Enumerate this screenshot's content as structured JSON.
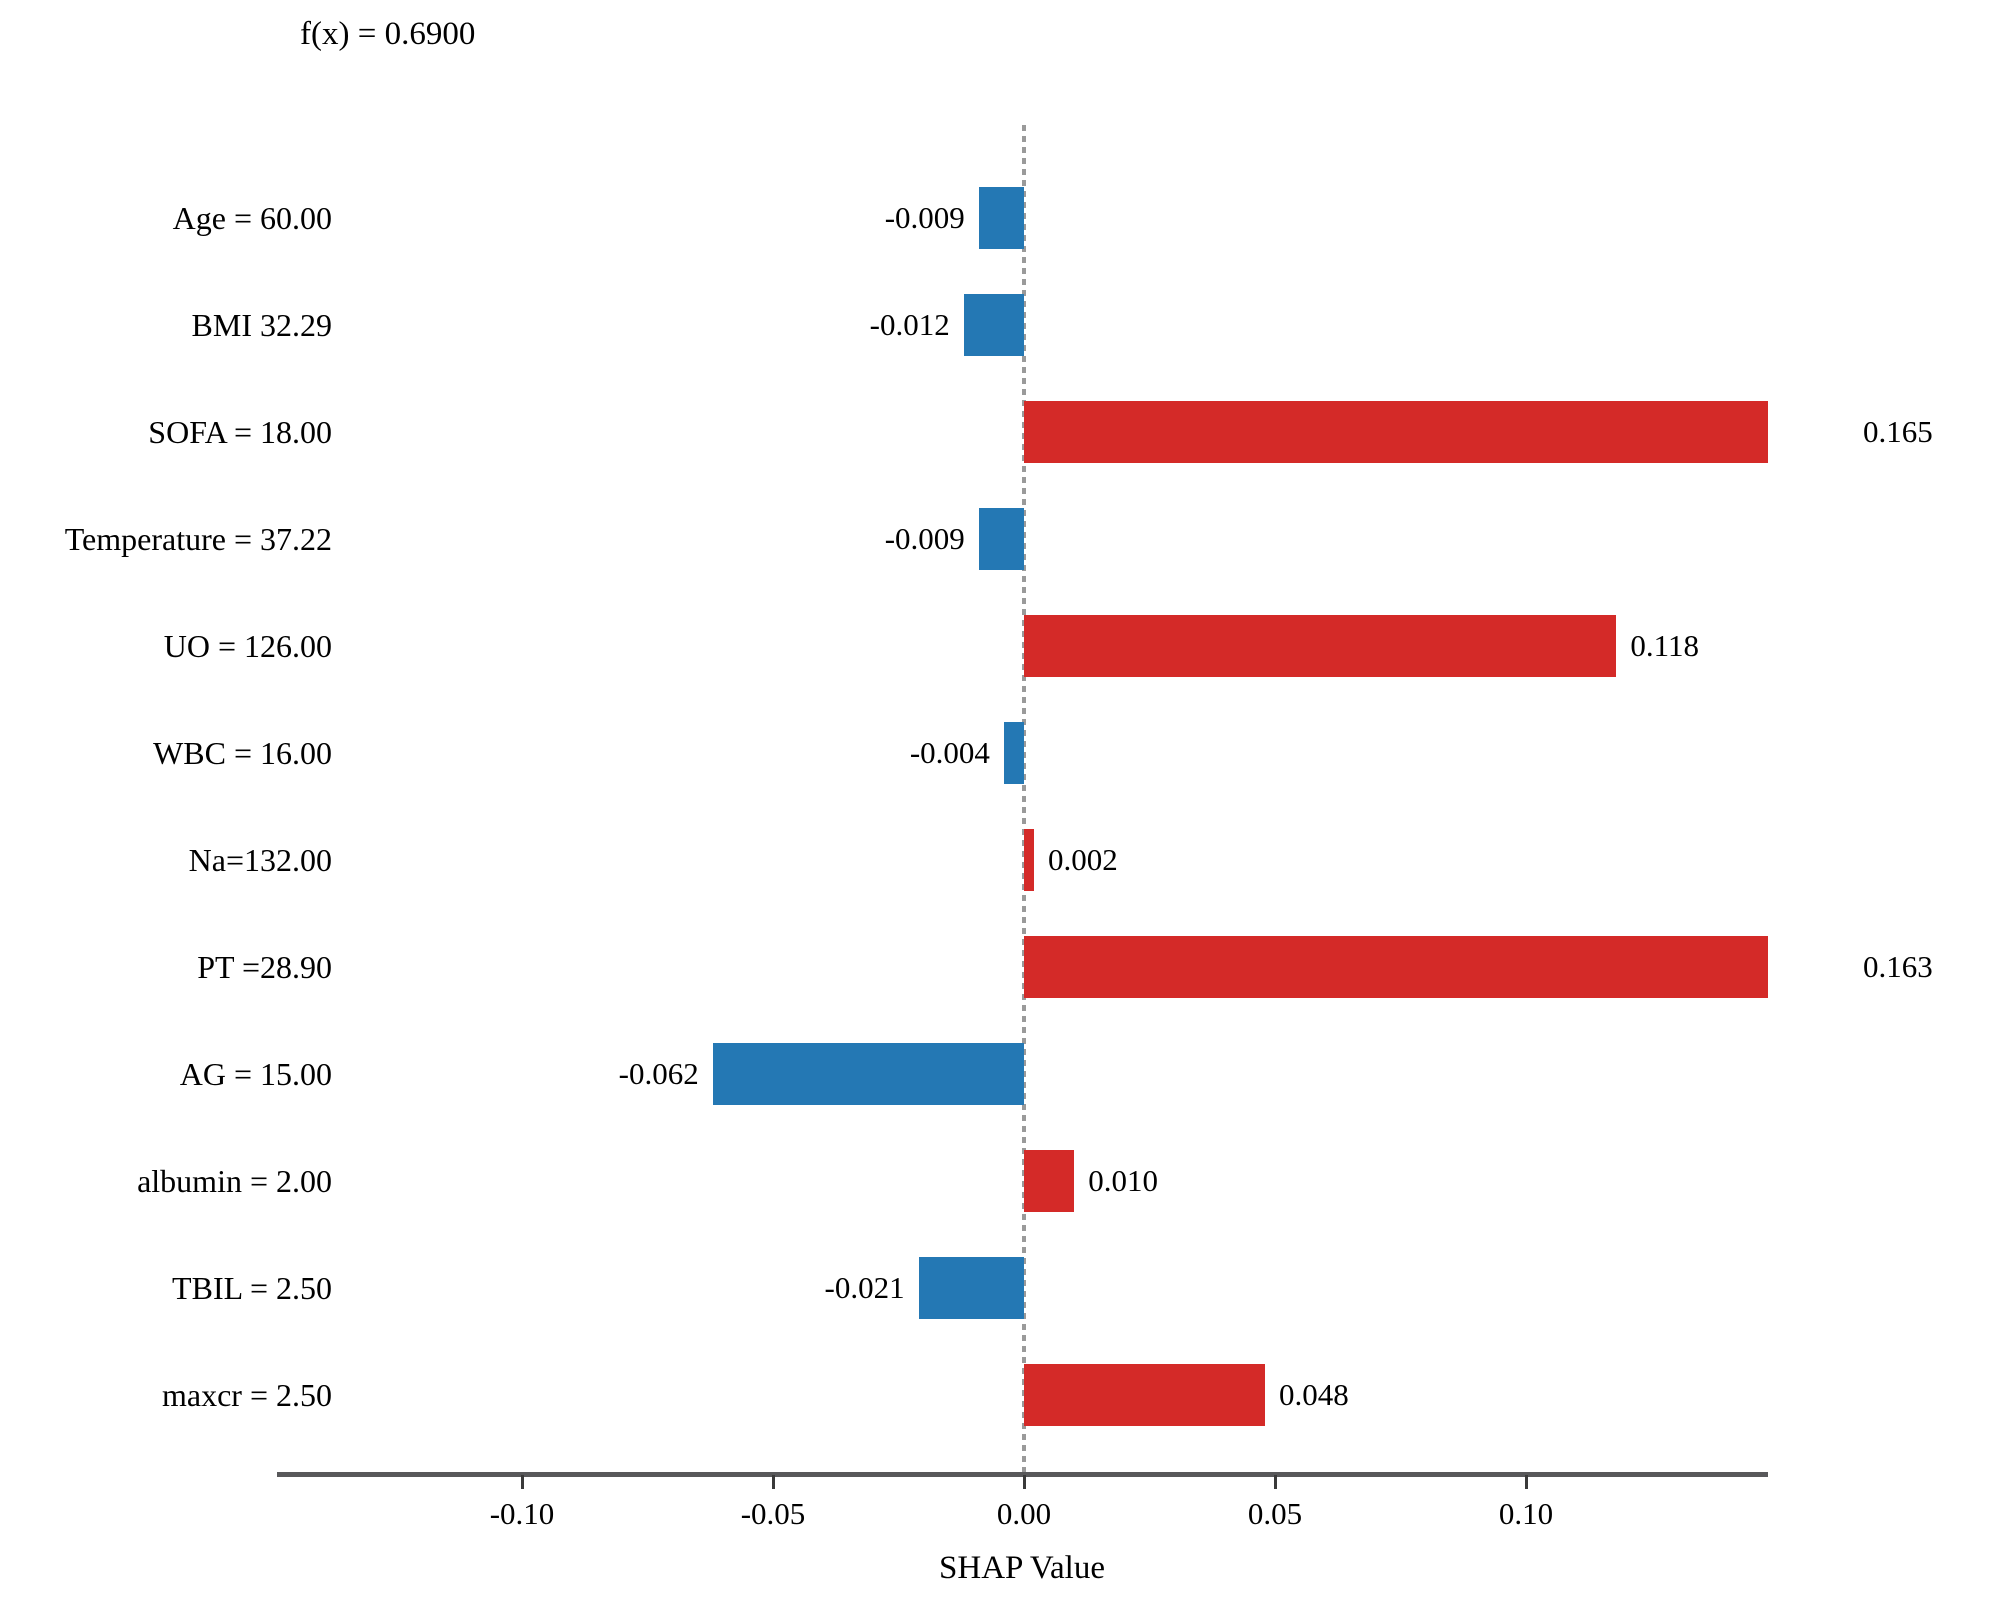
{
  "title": "f(x) = 0.6900",
  "chart_data": {
    "type": "bar",
    "orientation": "horizontal",
    "title": "f(x) = 0.6900",
    "xlabel": "SHAP Value",
    "x_ticks": [
      "-0.10",
      "-0.05",
      "0.00",
      "0.05",
      "0.10"
    ],
    "x_tick_values": [
      -0.1,
      -0.05,
      0.0,
      0.05,
      0.1
    ],
    "xlim": [
      -0.149,
      0.148
    ],
    "baseline": 0,
    "grid": false,
    "legend": "none",
    "features": [
      {
        "label": "Age = 60.00",
        "value": -0.009,
        "value_label": "-0.009"
      },
      {
        "label": "BMI 32.29",
        "value": -0.012,
        "value_label": "-0.012"
      },
      {
        "label": "SOFA = 18.00",
        "value": 0.165,
        "value_label": "0.165"
      },
      {
        "label": "Temperature = 37.22",
        "value": -0.009,
        "value_label": "-0.009"
      },
      {
        "label": "UO = 126.00",
        "value": 0.118,
        "value_label": "0.118"
      },
      {
        "label": "WBC = 16.00",
        "value": -0.004,
        "value_label": "-0.004"
      },
      {
        "label": "Na=132.00",
        "value": 0.002,
        "value_label": "0.002"
      },
      {
        "label": "PT =28.90",
        "value": 0.163,
        "value_label": "0.163"
      },
      {
        "label": "AG = 15.00",
        "value": -0.062,
        "value_label": "-0.062"
      },
      {
        "label": "albumin = 2.00",
        "value": 0.01,
        "value_label": "0.010"
      },
      {
        "label": "TBIL = 2.50",
        "value": -0.021,
        "value_label": "-0.021"
      },
      {
        "label": "maxcr = 2.50",
        "value": 0.048,
        "value_label": "0.048"
      }
    ],
    "colors": {
      "positive_bar": "#d42a28",
      "negative_bar": "#2478b4",
      "zero_line": "#9a9a9a",
      "axis_line": "#58585a",
      "text": "#000000"
    }
  }
}
